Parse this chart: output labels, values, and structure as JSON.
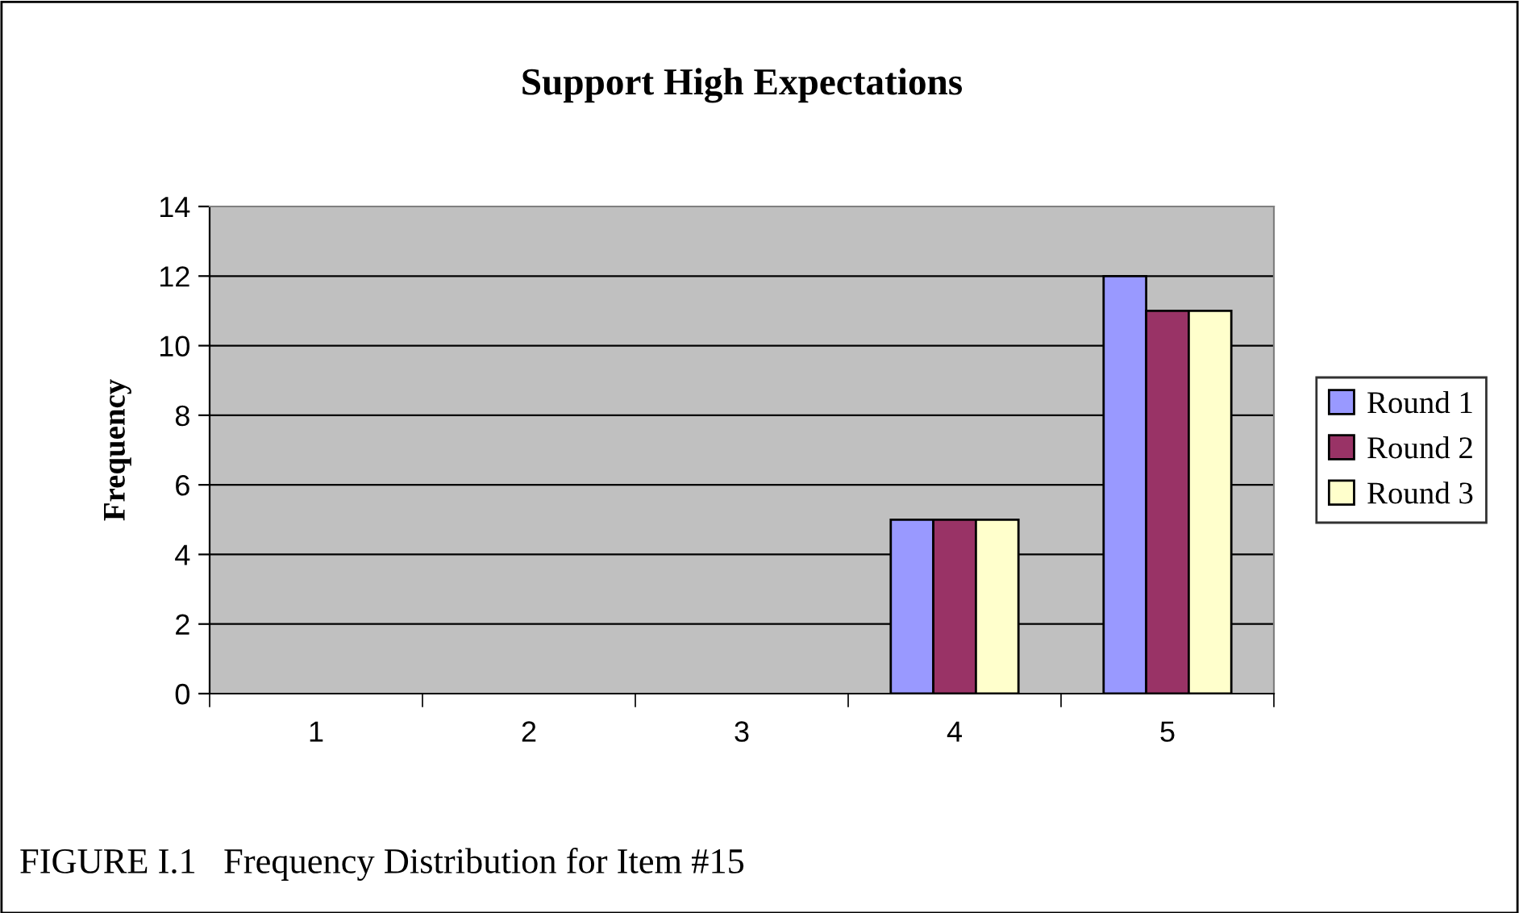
{
  "chart_data": {
    "type": "bar",
    "title": "Support High Expectations",
    "ylabel": "Frequency",
    "categories": [
      "1",
      "2",
      "3",
      "4",
      "5"
    ],
    "series": [
      {
        "name": "Round 1",
        "color": "#9999ff",
        "values": [
          0,
          0,
          0,
          5,
          12
        ]
      },
      {
        "name": "Round 2",
        "color": "#993366",
        "values": [
          0,
          0,
          0,
          5,
          11
        ]
      },
      {
        "name": "Round 3",
        "color": "#ffffcc",
        "values": [
          0,
          0,
          0,
          5,
          11
        ]
      }
    ],
    "ylim": [
      0,
      14
    ],
    "yticks": [
      0,
      2,
      4,
      6,
      8,
      10,
      12,
      14
    ],
    "grid": "y",
    "legend": "right",
    "annotations": [
      "FIGURE I.1   Frequency Distribution for Item #15"
    ]
  }
}
